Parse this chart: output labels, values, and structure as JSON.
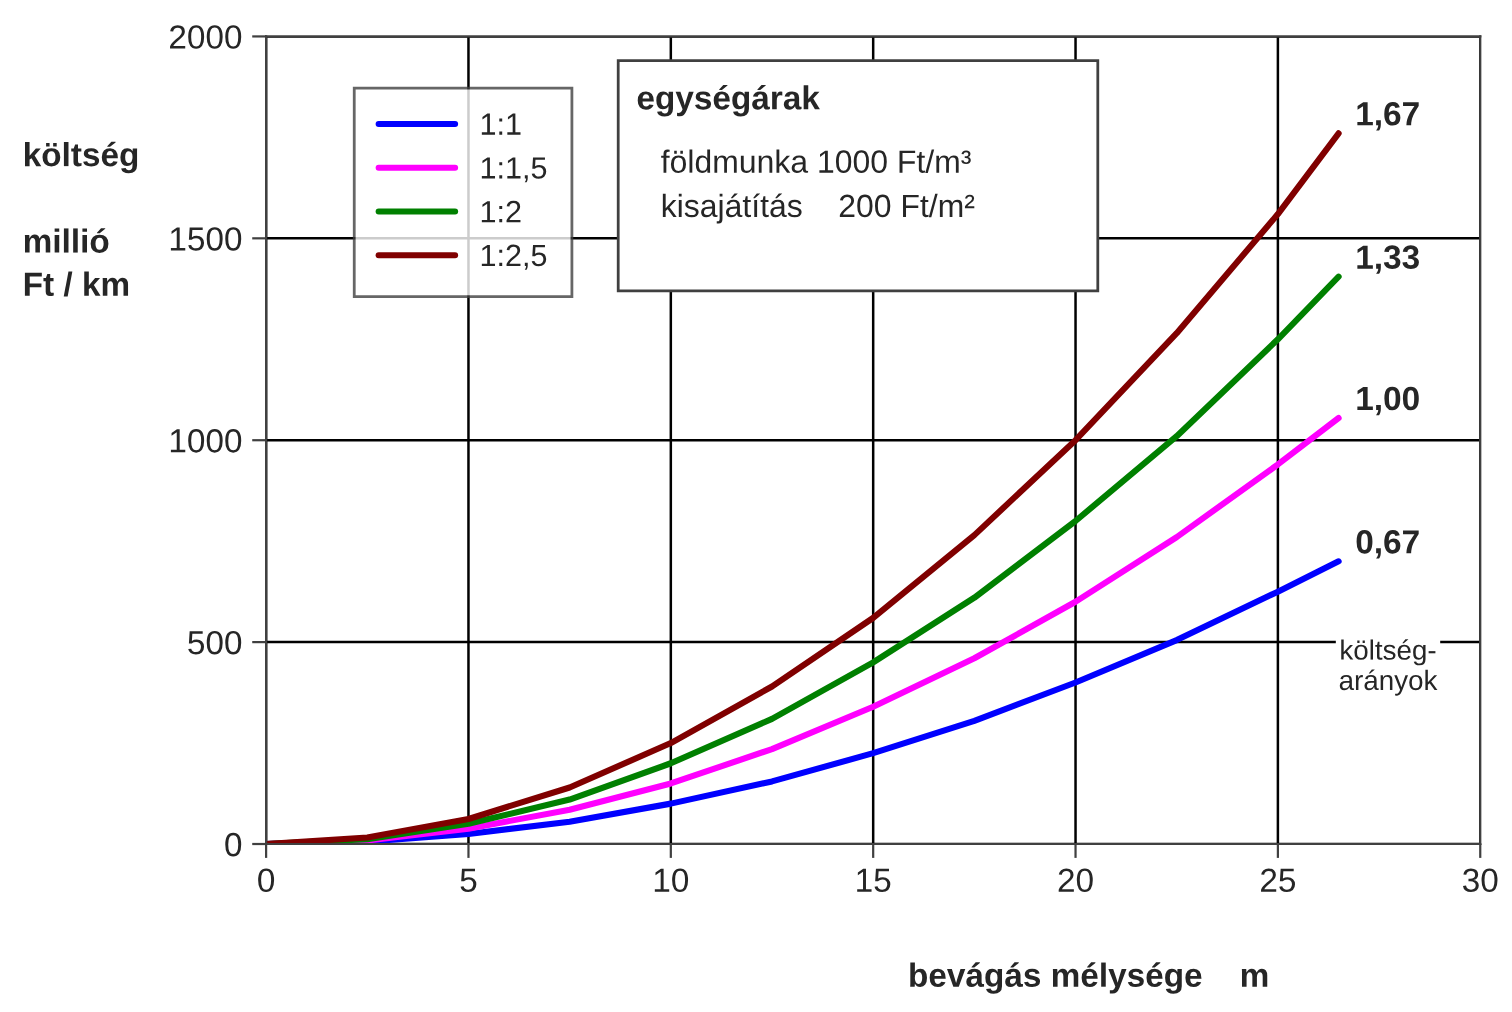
{
  "chart_data": {
    "type": "line",
    "xlabel": "bevágás mélysége    m",
    "ylabel": "költség\n\nmillió\nFt / km",
    "x": [
      0,
      2.5,
      5,
      7.5,
      10,
      12.5,
      15,
      17.5,
      20,
      22.5,
      25,
      26.5
    ],
    "series": [
      {
        "name": "1:1",
        "color": "#0000ff",
        "values": [
          0,
          6,
          25,
          55,
          100,
          155,
          225,
          305,
          400,
          505,
          625,
          700
        ]
      },
      {
        "name": "1:1,5",
        "color": "#ff00ff",
        "values": [
          0,
          9,
          38,
          85,
          150,
          235,
          340,
          460,
          600,
          760,
          940,
          1055
        ]
      },
      {
        "name": "1:2",
        "color": "#008000",
        "values": [
          0,
          12,
          50,
          110,
          200,
          310,
          450,
          610,
          800,
          1010,
          1250,
          1405
        ]
      },
      {
        "name": "1:2,5",
        "color": "#800000",
        "values": [
          0,
          16,
          62,
          140,
          250,
          390,
          560,
          765,
          1000,
          1265,
          1560,
          1760
        ]
      }
    ],
    "xlim": [
      0,
      30
    ],
    "xticks": [
      0,
      5,
      10,
      15,
      20,
      25,
      30
    ],
    "ylim": [
      0,
      2000
    ],
    "yticks": [
      0,
      500,
      1000,
      1500,
      2000
    ],
    "grid": true,
    "legend": "top left",
    "annotations": [
      "0,67",
      "1,00",
      "1,33",
      "1,67",
      "egységárak",
      "földmunka 1000 Ft/m³",
      "kisajátítás    200 Ft/m²",
      "költség-\narányok"
    ]
  }
}
